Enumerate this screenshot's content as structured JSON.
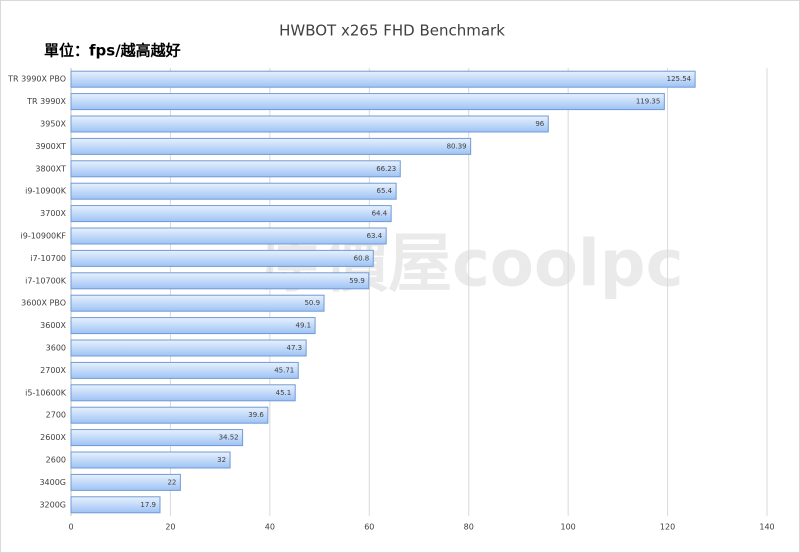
{
  "chart_data": {
    "type": "bar",
    "orientation": "horizontal",
    "title": "HWBOT x265 FHD Benchmark",
    "subtitle": "單位：fps/越高越好",
    "watermark": "原價屋coolpc",
    "categories": [
      "TR 3990X PBO",
      "TR 3990X",
      "3950X",
      "3900XT",
      "3800XT",
      "i9-10900K",
      "3700X",
      "i9-10900KF",
      "i7-10700",
      "i7-10700K",
      "3600X PBO",
      "3600X",
      "3600",
      "2700X",
      "i5-10600K",
      "2700",
      "2600X",
      "2600",
      "3400G",
      "3200G"
    ],
    "values": [
      125.54,
      119.35,
      96,
      80.39,
      66.23,
      65.4,
      64.4,
      63.4,
      60.8,
      59.9,
      50.9,
      49.1,
      47.3,
      45.71,
      45.1,
      39.6,
      34.52,
      32,
      22,
      17.9
    ],
    "color": "#9ec3f5",
    "xlim": [
      0,
      140
    ],
    "xticks": [
      0,
      20,
      40,
      60,
      80,
      100,
      120,
      140
    ],
    "grid": true
  }
}
